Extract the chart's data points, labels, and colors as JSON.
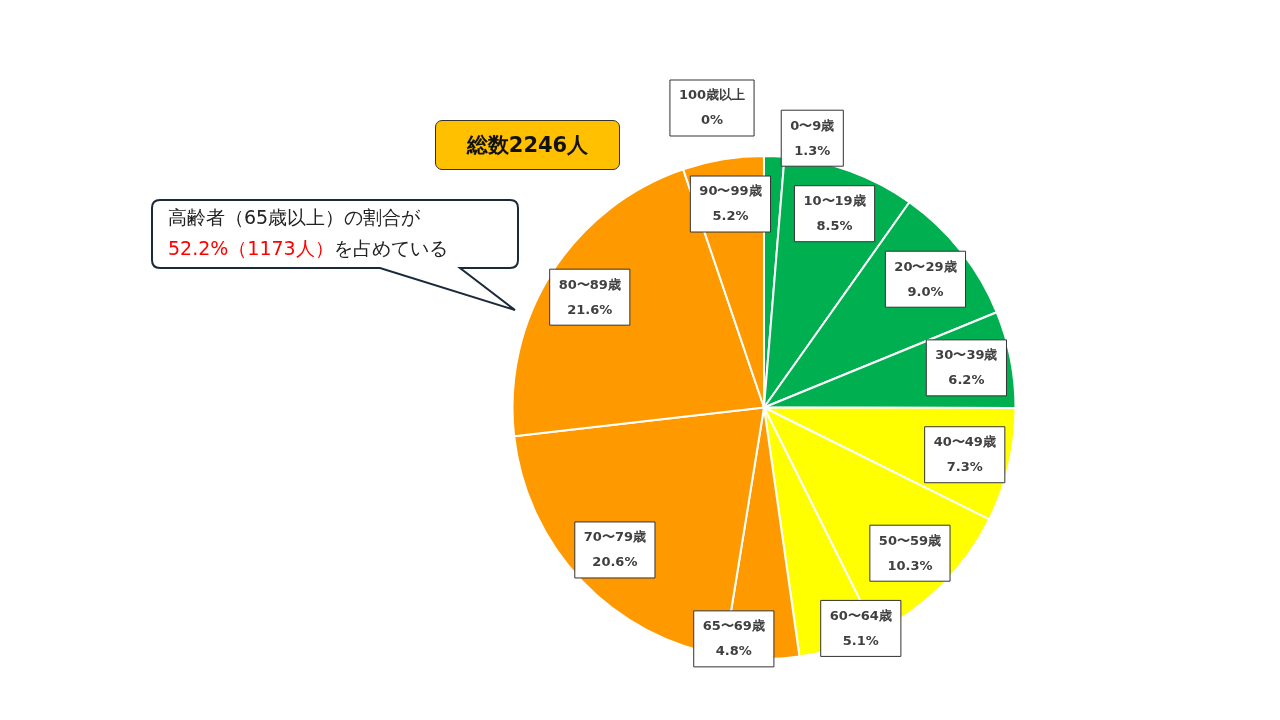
{
  "chart_data": {
    "type": "pie",
    "categories": [
      "0〜9歳",
      "10〜19歳",
      "20〜29歳",
      "30〜39歳",
      "40〜49歳",
      "50〜59歳",
      "60〜64歳",
      "65〜69歳",
      "70〜79歳",
      "80〜89歳",
      "90〜99歳",
      "100歳以上"
    ],
    "values": [
      1.3,
      8.5,
      9.0,
      6.2,
      7.3,
      10.3,
      5.1,
      4.8,
      20.6,
      21.6,
      5.2,
      0
    ],
    "value_labels": [
      "1.3%",
      "8.5%",
      "9.0%",
      "6.2%",
      "7.3%",
      "10.3%",
      "5.1%",
      "4.8%",
      "20.6%",
      "21.6%",
      "5.2%",
      "0%"
    ],
    "colors": [
      "#00b050",
      "#00b050",
      "#00b050",
      "#00b050",
      "#ffff00",
      "#ffff00",
      "#ffff00",
      "#ff9900",
      "#ff9900",
      "#ff9900",
      "#ff9900",
      "#ff9900"
    ],
    "legend": false,
    "annotations": [
      "総数2246人",
      "高齢者（65歳以上）の割合が",
      "52.2%（1173人）",
      "を占めている"
    ]
  }
}
